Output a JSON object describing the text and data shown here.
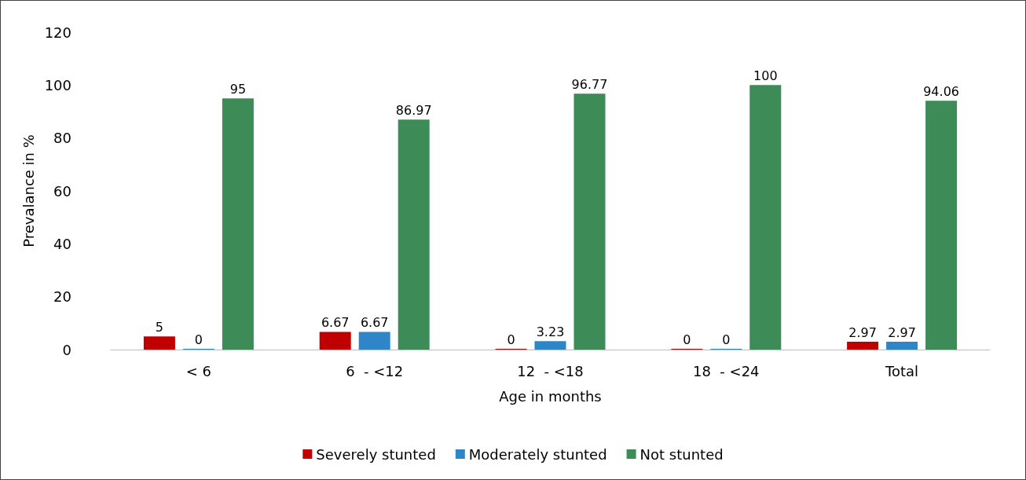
{
  "chart_data": {
    "type": "bar",
    "xlabel": "Age in months",
    "ylabel": "Prevalance in %",
    "categories": [
      "< 6",
      "6  - <12",
      "12  - <18",
      "18  - <24",
      "Total"
    ],
    "series": [
      {
        "name": "Severely stunted",
        "color": "#c00000",
        "values": [
          5,
          6.67,
          0,
          0,
          2.97
        ]
      },
      {
        "name": "Moderately stunted",
        "color": "#2e86c8",
        "values": [
          0,
          6.67,
          3.23,
          0,
          2.97
        ]
      },
      {
        "name": "Not stunted",
        "color": "#3d8b57",
        "values": [
          95,
          86.97,
          96.77,
          100,
          94.06
        ]
      }
    ],
    "ylim": [
      0,
      120
    ],
    "yticks": [
      0,
      20,
      40,
      60,
      80,
      100,
      120
    ],
    "grid": false,
    "legend": "bottom",
    "data_labels": true
  }
}
